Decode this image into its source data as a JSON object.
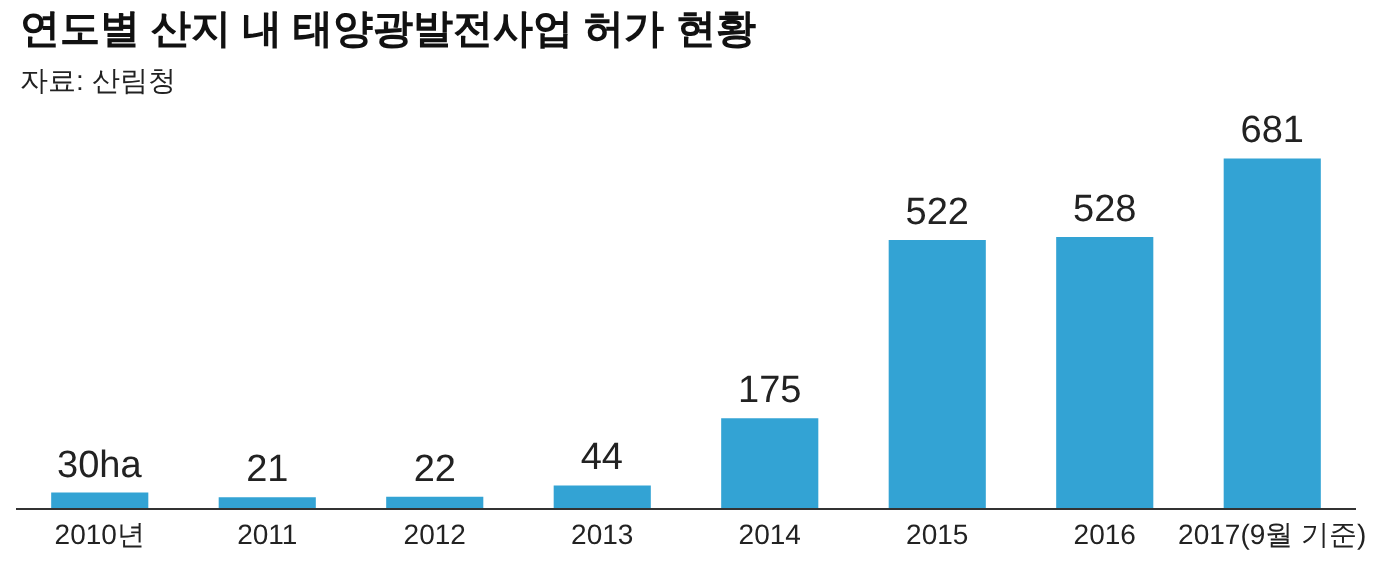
{
  "chart_data": {
    "type": "bar",
    "title": "연도별 산지 내 태양광발전사업 허가 현황",
    "subtitle": "자료: 산림청",
    "categories": [
      "2010년",
      "2011",
      "2012",
      "2013",
      "2014",
      "2015",
      "2016",
      "2017(9월 기준)"
    ],
    "values": [
      30,
      21,
      22,
      44,
      175,
      522,
      528,
      681
    ],
    "value_labels": [
      "30ha",
      "21",
      "22",
      "44",
      "175",
      "522",
      "528",
      "681"
    ],
    "color": "#33a3d4"
  }
}
